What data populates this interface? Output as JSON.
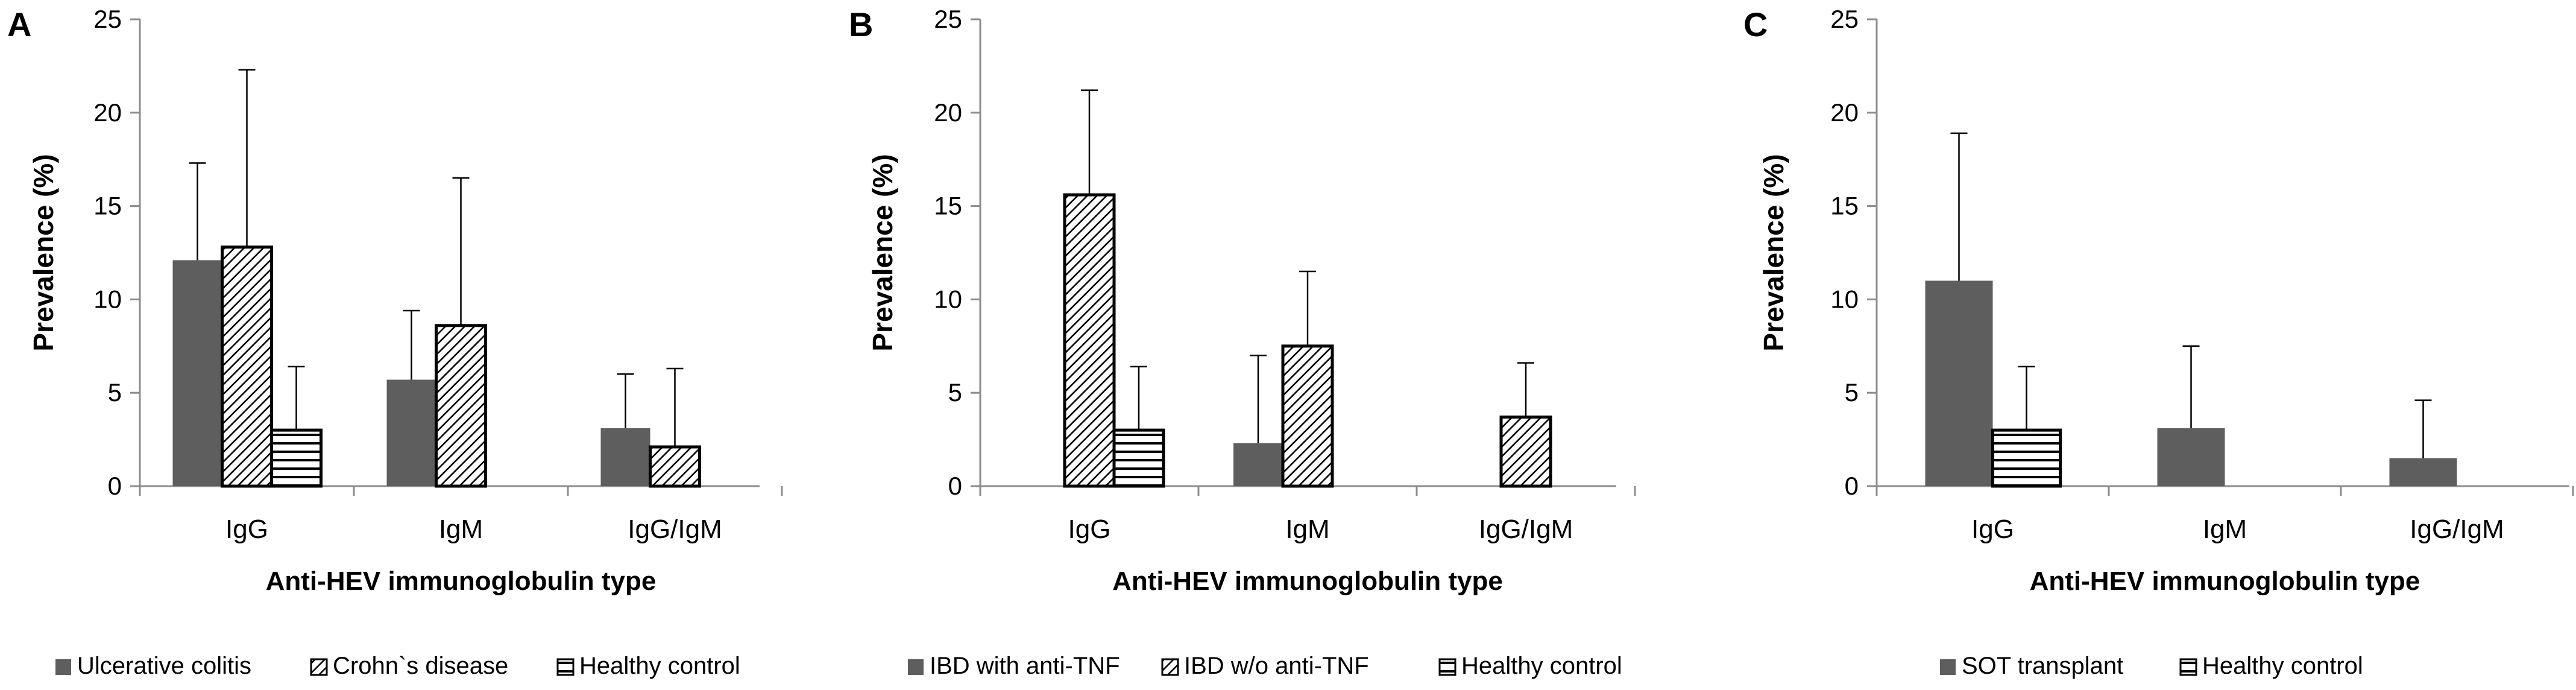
{
  "colors": {
    "solid_fill": "#5e5e5e",
    "axis": "#8c8c8c",
    "stroke": "#000000",
    "background": "#ffffff"
  },
  "chart_data": [
    {
      "type": "bar",
      "panel_label": "A",
      "xlabel": "Anti-HEV immunoglobulin type",
      "ylabel": "Prevalence (%)",
      "ylim": [
        0,
        25
      ],
      "yticks": [
        0,
        5,
        10,
        15,
        20,
        25
      ],
      "categories": [
        "IgG",
        "IgM",
        "IgG/IgM"
      ],
      "legend_position": "bottom",
      "series": [
        {
          "name": "Ulcerative colitis",
          "pattern": "solid",
          "values": [
            12.1,
            5.7,
            3.1
          ],
          "error_upper": [
            17.3,
            9.4,
            6.0
          ]
        },
        {
          "name": "Crohn`s disease",
          "pattern": "diagonal",
          "values": [
            12.8,
            8.6,
            2.1
          ],
          "error_upper": [
            22.3,
            16.5,
            6.3
          ]
        },
        {
          "name": "Healthy control",
          "pattern": "horizontal",
          "values": [
            3.0,
            null,
            null
          ],
          "error_upper": [
            6.4,
            null,
            null
          ]
        }
      ]
    },
    {
      "type": "bar",
      "panel_label": "B",
      "xlabel": "Anti-HEV immunoglobulin type",
      "ylabel": "Prevalence (%)",
      "ylim": [
        0,
        25
      ],
      "yticks": [
        0,
        5,
        10,
        15,
        20,
        25
      ],
      "categories": [
        "IgG",
        "IgM",
        "IgG/IgM"
      ],
      "legend_position": "bottom",
      "series": [
        {
          "name": "IBD with anti-TNF",
          "pattern": "solid",
          "values": [
            null,
            2.3,
            null
          ],
          "error_upper": [
            null,
            7.0,
            null
          ]
        },
        {
          "name": "IBD w/o anti-TNF",
          "pattern": "diagonal",
          "values": [
            15.6,
            7.5,
            3.7
          ],
          "error_upper": [
            21.2,
            11.5,
            6.6
          ]
        },
        {
          "name": "Healthy control",
          "pattern": "horizontal",
          "values": [
            3.0,
            null,
            null
          ],
          "error_upper": [
            6.4,
            null,
            null
          ]
        }
      ]
    },
    {
      "type": "bar",
      "panel_label": "C",
      "xlabel": "Anti-HEV immunoglobulin type",
      "ylabel": "Prevalence (%)",
      "ylim": [
        0,
        25
      ],
      "yticks": [
        0,
        5,
        10,
        15,
        20,
        25
      ],
      "categories": [
        "IgG",
        "IgM",
        "IgG/IgM"
      ],
      "legend_position": "bottom",
      "series": [
        {
          "name": "SOT transplant",
          "pattern": "solid",
          "values": [
            11.0,
            3.1,
            1.5
          ],
          "error_upper": [
            18.9,
            7.5,
            4.6
          ]
        },
        {
          "name": "Healthy control",
          "pattern": "horizontal",
          "values": [
            3.0,
            null,
            null
          ],
          "error_upper": [
            6.4,
            null,
            null
          ]
        }
      ]
    }
  ]
}
